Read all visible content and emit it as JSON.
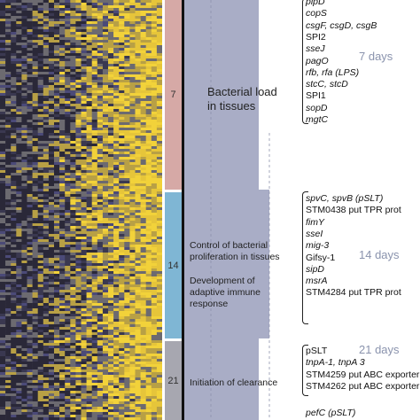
{
  "timepoints": [
    {
      "label": "7",
      "color": "#d6a9a6"
    },
    {
      "label": "14",
      "color": "#7fb6d4"
    },
    {
      "label": "21",
      "color": "#a7a7b0"
    }
  ],
  "phenotypes": {
    "bacterial_load": "Bacterial load in tissues",
    "control": "Control of bacterial proliferation in tissues",
    "adaptive": "Development of adaptive immune response",
    "clearance": "Initiation of clearance"
  },
  "gene_groups": [
    {
      "days": "7 days",
      "genes": [
        "pipD",
        "copS",
        "csgF, csgD, csgB",
        "SPI2",
        "sseJ",
        "pagO",
        "rfb, rfa (LPS)",
        "stcC, stcD",
        "SPI1",
        "sopD",
        "mgtC"
      ]
    },
    {
      "days": "14 days",
      "genes": [
        "spvC, spvB (pSLT)",
        "STM0438 put TPR prot",
        "fimY",
        "sseI",
        "mig-3",
        "Gifsy-1",
        "sipD",
        "msrA",
        "STM4284 put TPR prot"
      ]
    },
    {
      "days": "21 days",
      "genes": [
        "pSLT",
        "tnpA-1, tnpA 3",
        "STM4259 put ABC exporter",
        "STM4262 put ABC exporter"
      ]
    },
    {
      "days": "",
      "genes": [
        "pefC (pSLT)"
      ]
    }
  ],
  "colors": {
    "band": "#a9adc6",
    "heat_low": "#3a3550",
    "heat_mid": "#6d6a6f",
    "heat_high": "#f2d23a"
  }
}
